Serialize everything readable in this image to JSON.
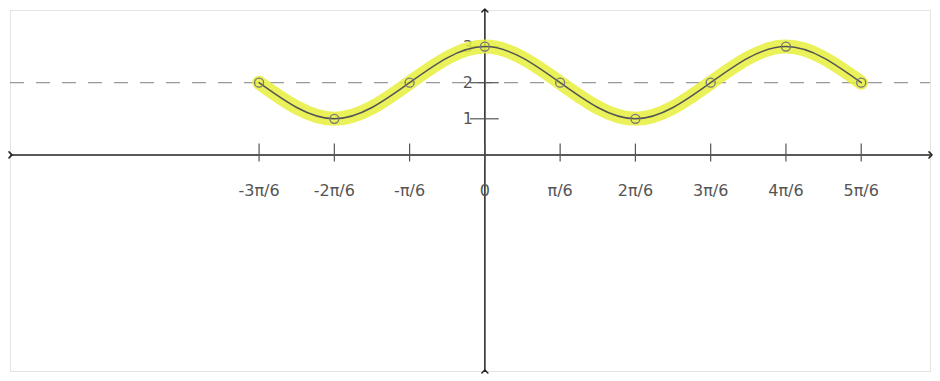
{
  "chart_data": {
    "type": "line",
    "x": [
      -1.5708,
      -1.0472,
      -0.5236,
      0,
      0.5236,
      1.0472,
      1.5708,
      2.0944,
      2.618
    ],
    "values": [
      2,
      1,
      2,
      3,
      2,
      1,
      2,
      3,
      2
    ],
    "color": "#e6ee3c",
    "marker": "circle",
    "line_style": "solid",
    "midline": 2,
    "xlim": [
      -3.3,
      3.1
    ],
    "ylim": [
      -6,
      4
    ],
    "xticks": [
      {
        "value": -1.5708,
        "label": "-3π/6"
      },
      {
        "value": -1.0472,
        "label": "-2π/6"
      },
      {
        "value": -0.5236,
        "label": "-π/6"
      },
      {
        "value": 0,
        "label": "0"
      },
      {
        "value": 0.5236,
        "label": "π/6"
      },
      {
        "value": 1.0472,
        "label": "2π/6"
      },
      {
        "value": 1.5708,
        "label": "3π/6"
      },
      {
        "value": 2.0944,
        "label": "4π/6"
      },
      {
        "value": 2.618,
        "label": "5π/6"
      }
    ],
    "yticks": [
      1,
      2,
      3
    ],
    "grid": false
  }
}
